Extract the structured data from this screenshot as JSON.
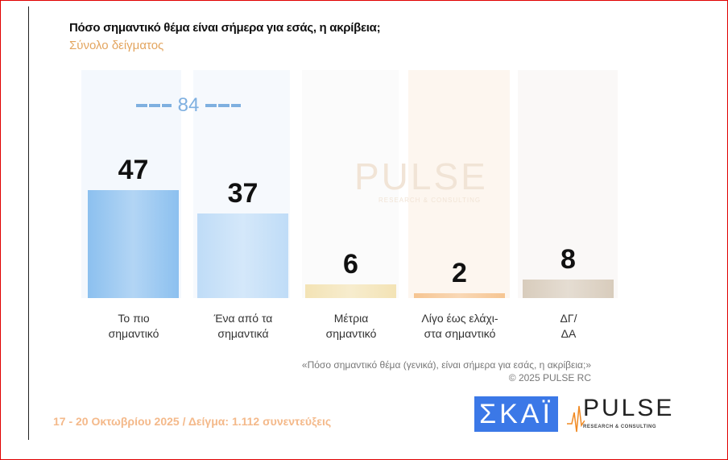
{
  "header": {
    "title": "Πόσο σημαντικό θέμα είναι σήμερα για εσάς, η ακρίβεια;",
    "subtitle": "Σύνολο δείγματος"
  },
  "chart_data": {
    "type": "bar",
    "title": "Πόσο σημαντικό θέμα είναι σήμερα για εσάς, η ακρίβεια;",
    "categories": [
      "Το πιο\nσημαντικό",
      "Ένα από τα\nσημαντικά",
      "Μέτρια\nσημαντικό",
      "Λίγο έως ελάχι-\nστα σημαντικό",
      "ΔΓ/\nΔΑ"
    ],
    "values": [
      47,
      37,
      6,
      2,
      8
    ],
    "colors": [
      "#8cc0ef",
      "#bfdcf7",
      "#f3e3b5",
      "#f6c592",
      "#d8ccbc"
    ],
    "column_bg": [
      "#f4f8fd",
      "#f6f9fd",
      "#fbfbfb",
      "#fdf6ef",
      "#faf8f7"
    ],
    "combined_label": "84",
    "ylim": [
      0,
      100
    ],
    "xlabel": "",
    "ylabel": ""
  },
  "watermark": {
    "main": "PULSE",
    "sub": "RESEARCH & CONSULTING"
  },
  "note": {
    "question": "«Πόσο σημαντικό θέμα (γενικά), είναι σήμερα για εσάς, η ακρίβεια;»",
    "copyright": "©  2025  PULSE RC"
  },
  "footer": {
    "text": "17 - 20 Οκτωβρίου 2025  /  Δείγμα:  1.112 συνεντεύξεις"
  },
  "logos": {
    "skai": "ΣΚΑΪ",
    "pulse": "PULSE",
    "pulse_sub": "RESEARCH & CONSULTING"
  }
}
